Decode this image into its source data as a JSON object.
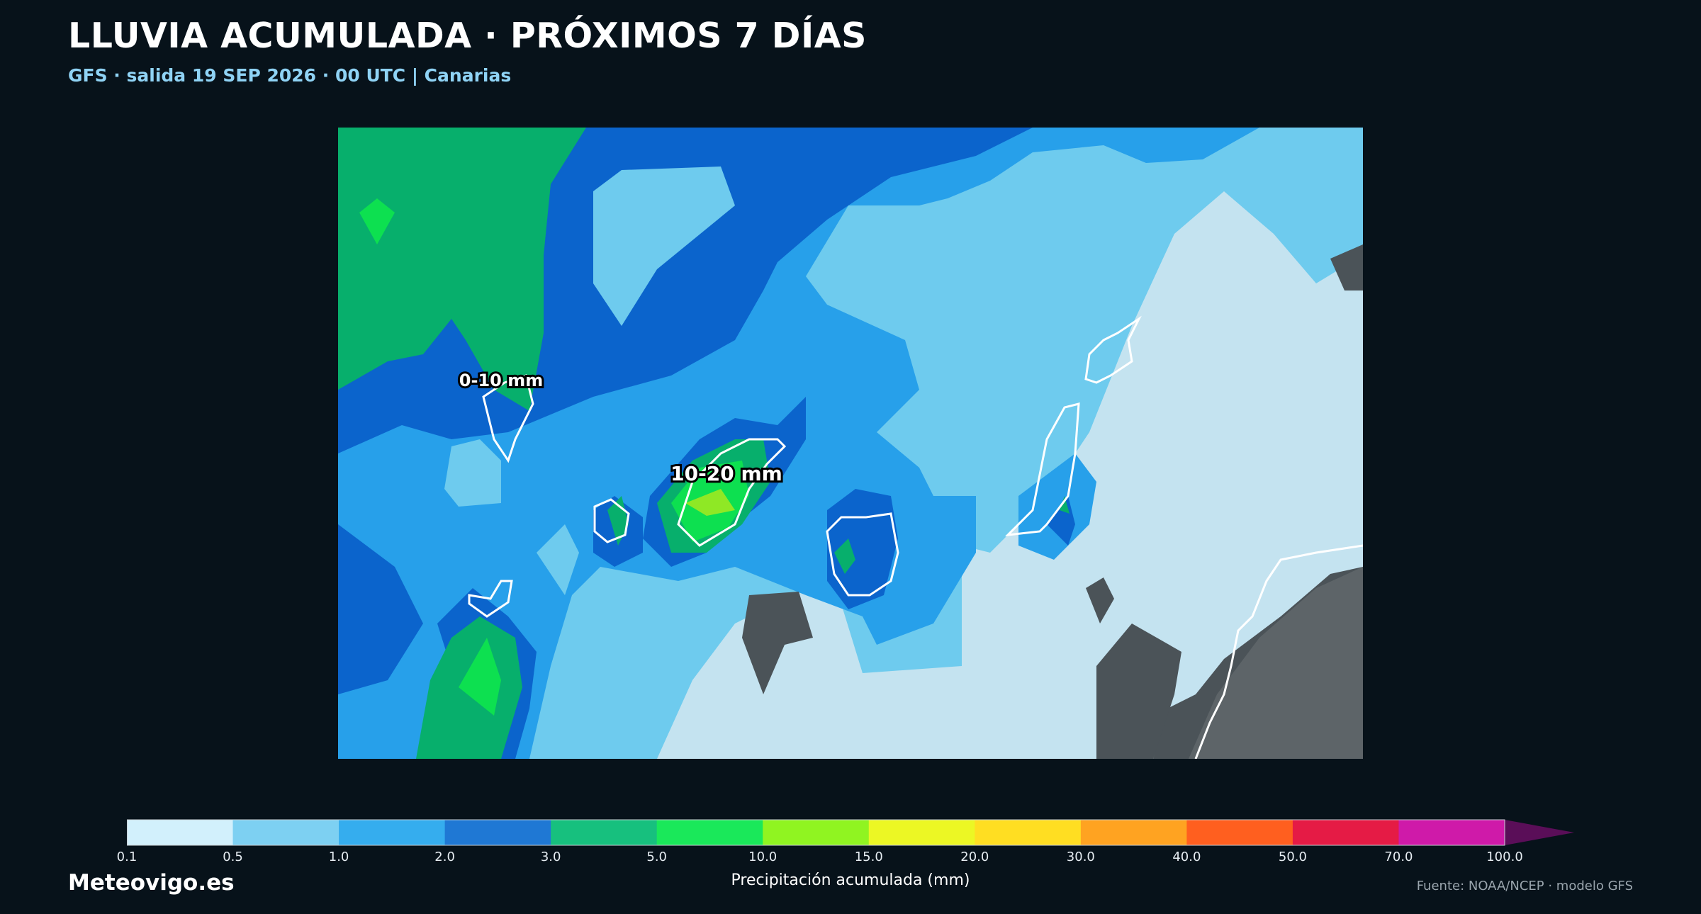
{
  "header": {
    "title": "LLUVIA ACUMULADA · PRÓXIMOS 7 DÍAS",
    "subtitle": "GFS · salida 19 SEP 2026 · 00 UTC  |  Canarias"
  },
  "map": {
    "labels": {
      "west": "0-10 mm",
      "center": "10-20 mm"
    },
    "land_color": "#4b5358"
  },
  "colorbar": {
    "label": "Precipitación acumulada (mm)",
    "ticks": [
      "0.1",
      "0.5",
      "1.0",
      "2.0",
      "3.0",
      "5.0",
      "10.0",
      "15.0",
      "20.0",
      "30.0",
      "40.0",
      "50.0",
      "70.0",
      "100.0"
    ],
    "colors": [
      "#d2f0fc",
      "#7dd0f2",
      "#35adee",
      "#1f78d4",
      "#17c07e",
      "#1ae85a",
      "#90f421",
      "#ecf724",
      "#ffde22",
      "#ffa321",
      "#ff5f1f",
      "#e51b45",
      "#cf1aa9"
    ],
    "extend_color": "#5a0e58"
  },
  "footer": {
    "brand": "Meteovigo.es",
    "source": "Fuente: NOAA/NCEP · modelo GFS"
  }
}
